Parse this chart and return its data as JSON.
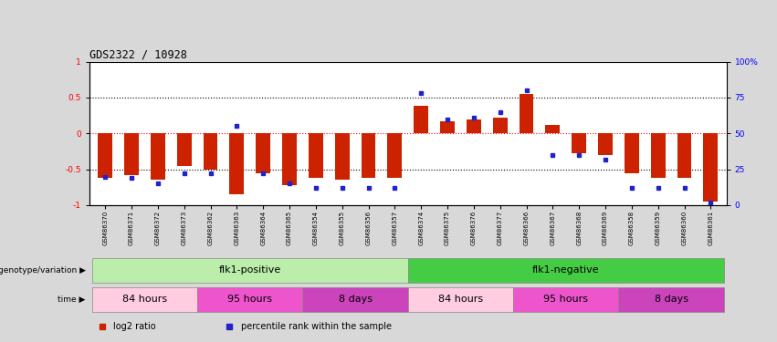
{
  "title": "GDS2322 / 10928",
  "samples": [
    "GSM86370",
    "GSM86371",
    "GSM86372",
    "GSM86373",
    "GSM86362",
    "GSM86363",
    "GSM86364",
    "GSM86365",
    "GSM86354",
    "GSM86355",
    "GSM86356",
    "GSM86357",
    "GSM86374",
    "GSM86375",
    "GSM86376",
    "GSM86377",
    "GSM86366",
    "GSM86367",
    "GSM86368",
    "GSM86369",
    "GSM86358",
    "GSM86359",
    "GSM86360",
    "GSM86361"
  ],
  "log2_ratio": [
    -0.62,
    -0.58,
    -0.65,
    -0.45,
    -0.5,
    -0.85,
    -0.55,
    -0.72,
    -0.62,
    -0.65,
    -0.62,
    -0.62,
    0.38,
    0.17,
    0.2,
    0.22,
    0.55,
    0.12,
    -0.28,
    -0.3,
    -0.55,
    -0.62,
    -0.62,
    -0.95
  ],
  "percentile": [
    0.2,
    0.19,
    0.15,
    0.22,
    0.22,
    0.55,
    0.22,
    0.15,
    0.12,
    0.12,
    0.12,
    0.12,
    0.78,
    0.6,
    0.61,
    0.65,
    0.8,
    0.35,
    0.35,
    0.32,
    0.12,
    0.12,
    0.12,
    0.02
  ],
  "bar_color": "#cc2200",
  "dot_color": "#2222cc",
  "ylim_left": [
    -1,
    1
  ],
  "ylim_right": [
    0,
    100
  ],
  "yticks_left": [
    -1,
    -0.5,
    0,
    0.5,
    1
  ],
  "ytick_labels_left": [
    "-1",
    "-0.5",
    "0",
    "0.5",
    "1"
  ],
  "yticks_right": [
    0,
    25,
    50,
    75,
    100
  ],
  "ytick_labels_right": [
    "0",
    "25",
    "50",
    "75",
    "100%"
  ],
  "genotype_groups": [
    {
      "label": "flk1-positive",
      "start": 0,
      "end": 11,
      "color": "#bbeeaa"
    },
    {
      "label": "flk1-negative",
      "start": 12,
      "end": 23,
      "color": "#44cc44"
    }
  ],
  "time_groups": [
    {
      "label": "84 hours",
      "start": 0,
      "end": 3,
      "color": "#ffcce0"
    },
    {
      "label": "95 hours",
      "start": 4,
      "end": 7,
      "color": "#ee55cc"
    },
    {
      "label": "8 days",
      "start": 8,
      "end": 11,
      "color": "#cc44bb"
    },
    {
      "label": "84 hours",
      "start": 12,
      "end": 15,
      "color": "#ffcce0"
    },
    {
      "label": "95 hours",
      "start": 16,
      "end": 19,
      "color": "#ee55cc"
    },
    {
      "label": "8 days",
      "start": 20,
      "end": 23,
      "color": "#cc44bb"
    }
  ],
  "legend_items": [
    {
      "label": "log2 ratio",
      "color": "#cc2200"
    },
    {
      "label": "percentile rank within the sample",
      "color": "#2222cc"
    }
  ],
  "background_color": "#d8d8d8",
  "plot_bg": "#ffffff",
  "label_fontsize": 7,
  "tick_fontsize": 6.5,
  "bar_width": 0.55
}
